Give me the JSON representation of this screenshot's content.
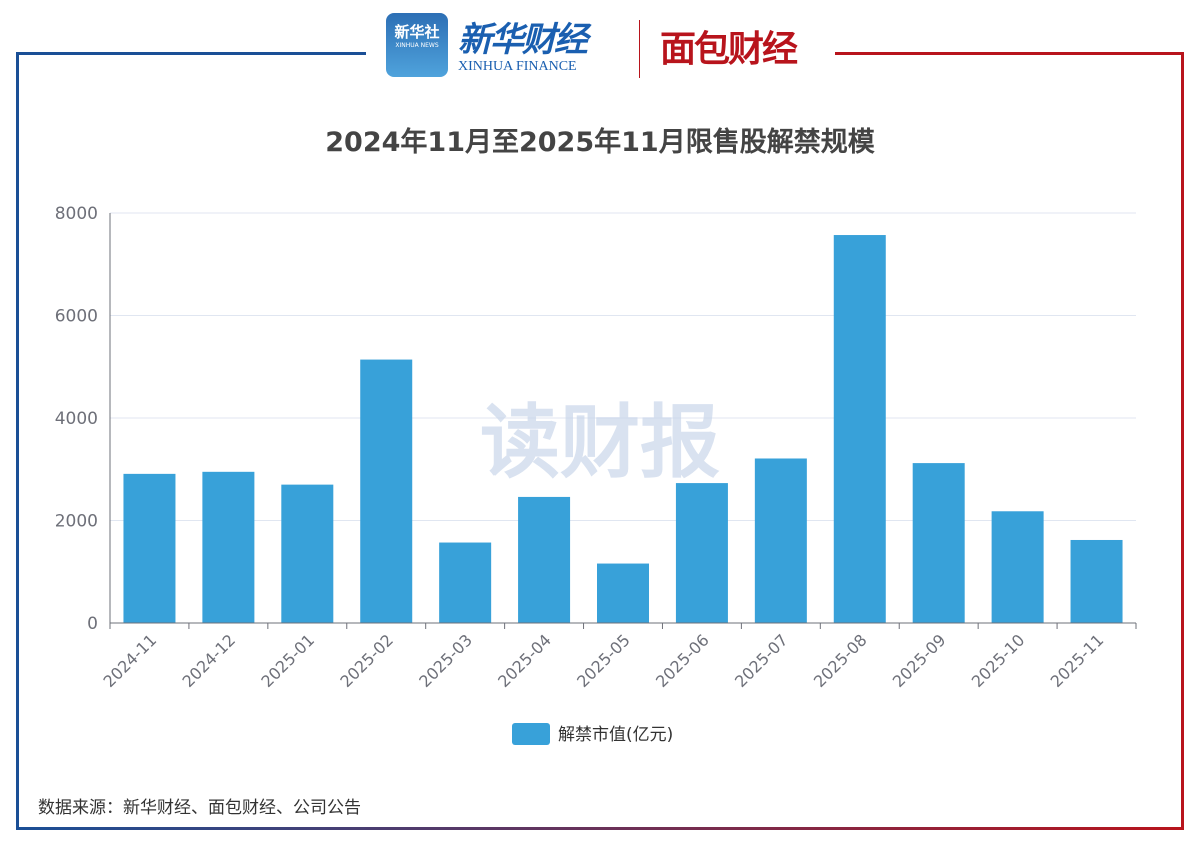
{
  "logos": {
    "xinhua_news": "新华社",
    "xinhua_news_en": "XINHUA NEWS",
    "xinhua_finance": "新华财经",
    "xinhua_finance_en": "XINHUA FINANCE",
    "mianbao": "面包财经"
  },
  "watermark": "读财报",
  "source": "数据来源：新华财经、面包财经、公司公告",
  "colors": {
    "bar": "#38a1d9",
    "grid": "#e0e6f1",
    "axis": "#6e7079",
    "frame_left": "#1a4f96",
    "frame_right": "#b8141c"
  },
  "chart_data": {
    "type": "bar",
    "title": "2024年11月至2025年11月限售股解禁规模",
    "categories": [
      "2024-11",
      "2024-12",
      "2025-01",
      "2025-02",
      "2025-03",
      "2025-04",
      "2025-05",
      "2025-06",
      "2025-07",
      "2025-08",
      "2025-09",
      "2025-10",
      "2025-11"
    ],
    "series": [
      {
        "name": "解禁市值(亿元)",
        "values": [
          2910,
          2950,
          2700,
          5140,
          1570,
          2460,
          1160,
          2730,
          3210,
          7570,
          3120,
          2180,
          1620
        ]
      }
    ],
    "ylim": [
      0,
      8000
    ],
    "yticks": [
      "0",
      "2000",
      "4000",
      "6000",
      "8000"
    ],
    "grid": true,
    "legend": "bottom"
  }
}
